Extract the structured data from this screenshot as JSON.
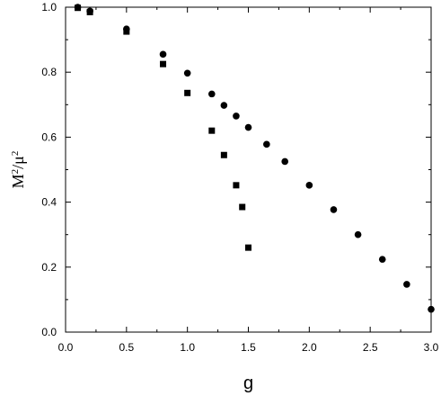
{
  "chart_data": {
    "type": "scatter",
    "title": "",
    "xlabel": "g",
    "ylabel": "M2/μ2",
    "ylabel_parts": {
      "base1": "M",
      "sup1": "2",
      "slash": "/",
      "base2": "μ",
      "sup2": "2"
    },
    "xlim": [
      0.0,
      3.0
    ],
    "ylim": [
      0.0,
      1.0
    ],
    "xticks": [
      "0.0",
      "0.5",
      "1.0",
      "1.5",
      "2.0",
      "2.5",
      "3.0"
    ],
    "yticks": [
      "0.0",
      "0.2",
      "0.4",
      "0.6",
      "0.8",
      "1.0"
    ],
    "grid": false,
    "legend": "none",
    "series": [
      {
        "marker": "circle",
        "color": "#000000",
        "points": [
          [
            0.1,
            1.0
          ],
          [
            0.2,
            0.988
          ],
          [
            0.5,
            0.933
          ],
          [
            0.8,
            0.855
          ],
          [
            1.0,
            0.797
          ],
          [
            1.2,
            0.733
          ],
          [
            1.3,
            0.698
          ],
          [
            1.4,
            0.665
          ],
          [
            1.5,
            0.63
          ],
          [
            1.65,
            0.578
          ],
          [
            1.8,
            0.525
          ],
          [
            2.0,
            0.452
          ],
          [
            2.2,
            0.377
          ],
          [
            2.4,
            0.3
          ],
          [
            2.6,
            0.224
          ],
          [
            2.8,
            0.147
          ],
          [
            3.0,
            0.07
          ]
        ]
      },
      {
        "marker": "square",
        "color": "#000000",
        "points": [
          [
            0.1,
            0.998
          ],
          [
            0.2,
            0.985
          ],
          [
            0.5,
            0.925
          ],
          [
            0.8,
            0.825
          ],
          [
            1.0,
            0.736
          ],
          [
            1.2,
            0.62
          ],
          [
            1.3,
            0.545
          ],
          [
            1.4,
            0.452
          ],
          [
            1.45,
            0.385
          ],
          [
            1.5,
            0.26
          ]
        ]
      }
    ]
  }
}
